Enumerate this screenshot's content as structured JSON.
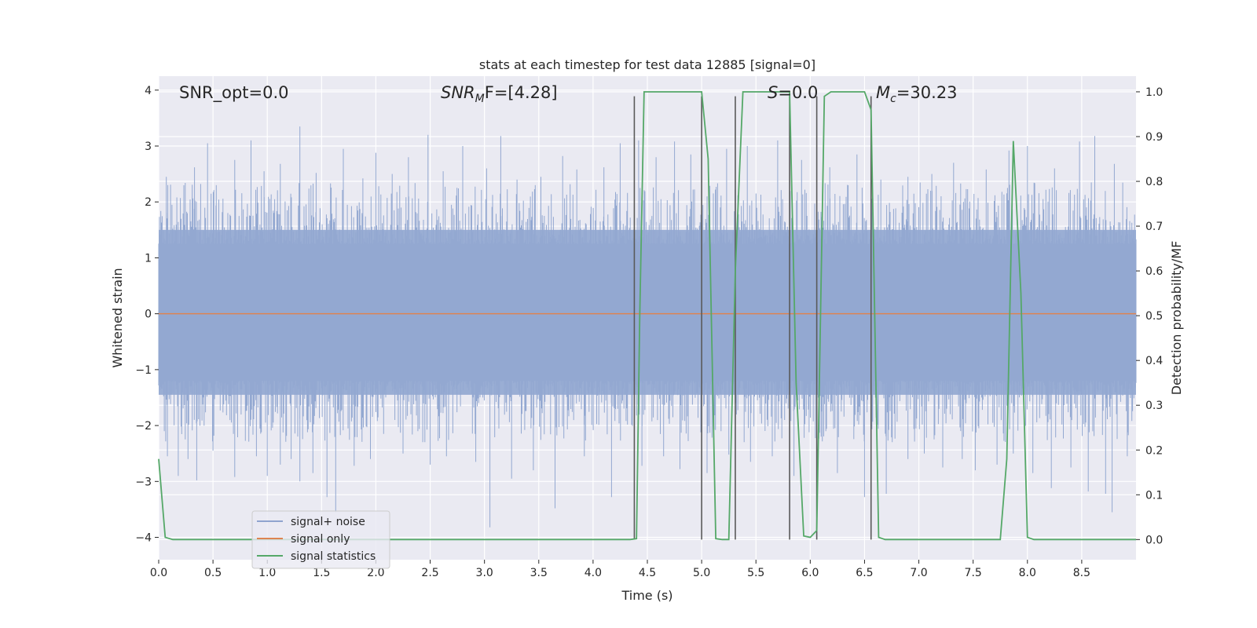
{
  "chart_data": {
    "type": "line",
    "title": "stats at each timestep for test data 12885 [signal=0]",
    "xlabel": "Time (s)",
    "ylabel_left": "Whitened strain",
    "ylabel_right": "Detection probability/MF",
    "xlim": [
      0.0,
      9.0
    ],
    "ylim_left": [
      -4.4,
      4.25
    ],
    "ylim_right": [
      -0.045,
      1.035
    ],
    "x_ticks": [
      0.0,
      0.5,
      1.0,
      1.5,
      2.0,
      2.5,
      3.0,
      3.5,
      4.0,
      4.5,
      5.0,
      5.5,
      6.0,
      6.5,
      7.0,
      7.5,
      8.0,
      8.5
    ],
    "x_tick_labels": [
      "0.0",
      "0.5",
      "1.0",
      "1.5",
      "2.0",
      "2.5",
      "3.0",
      "3.5",
      "4.0",
      "4.5",
      "5.0",
      "5.5",
      "6.0",
      "6.5",
      "7.0",
      "7.5",
      "8.0",
      "8.5"
    ],
    "y_left_ticks": [
      -4,
      -3,
      -2,
      -1,
      0,
      1,
      2,
      3,
      4
    ],
    "y_left_tick_labels": [
      "−4",
      "−3",
      "−2",
      "−1",
      "0",
      "1",
      "2",
      "3",
      "4"
    ],
    "y_right_ticks": [
      0.0,
      0.1,
      0.2,
      0.3,
      0.4,
      0.5,
      0.6,
      0.7,
      0.8,
      0.9,
      1.0
    ],
    "y_right_tick_labels": [
      "0.0",
      "0.1",
      "0.2",
      "0.3",
      "0.4",
      "0.5",
      "0.6",
      "0.7",
      "0.8",
      "0.9",
      "1.0"
    ],
    "right_gridlines": [
      0.0,
      0.1,
      0.2,
      0.3,
      0.4,
      0.5,
      0.6,
      0.7,
      0.8,
      0.9,
      1.0
    ],
    "annotations": {
      "snr_opt": "SNR_opt=0.0",
      "snr_mf_sym": "SNR",
      "snr_mf_sub": "M",
      "snr_mf_rest": "F=[4.28]",
      "s_sym": "S",
      "s_rest": "=0.0",
      "mc_sym": "M",
      "mc_sub": "c",
      "mc_rest": "=30.23"
    },
    "legend": {
      "position": "lower-left",
      "entries": [
        {
          "label": "signal+ noise",
          "color": "#8fa4ce"
        },
        {
          "label": "signal only",
          "color": "#dd8452"
        },
        {
          "label": "signal statistics",
          "color": "#55a868"
        }
      ]
    },
    "series": [
      {
        "name": "signal+ noise",
        "axis": "left",
        "style": "dense noise band",
        "band_core": [
          -1.55,
          1.6
        ],
        "band_extremes": [
          -3.85,
          3.35
        ],
        "spikes_up": [
          [
            0.07,
            2.45
          ],
          [
            0.33,
            2.62
          ],
          [
            0.45,
            3.05
          ],
          [
            0.53,
            2.3
          ],
          [
            0.7,
            2.75
          ],
          [
            0.85,
            3.1
          ],
          [
            0.97,
            2.55
          ],
          [
            1.12,
            2.68
          ],
          [
            1.3,
            3.35
          ],
          [
            1.45,
            2.52
          ],
          [
            1.7,
            2.95
          ],
          [
            1.88,
            2.42
          ],
          [
            2.0,
            2.88
          ],
          [
            2.15,
            2.5
          ],
          [
            2.3,
            2.8
          ],
          [
            2.48,
            3.2
          ],
          [
            2.62,
            2.55
          ],
          [
            2.8,
            3.0
          ],
          [
            3.02,
            2.6
          ],
          [
            3.15,
            3.18
          ],
          [
            3.3,
            2.4
          ],
          [
            3.52,
            2.45
          ],
          [
            3.72,
            2.82
          ],
          [
            3.85,
            2.58
          ],
          [
            4.1,
            2.62
          ],
          [
            4.25,
            3.05
          ],
          [
            4.42,
            3.1
          ],
          [
            4.58,
            2.8
          ],
          [
            4.75,
            3.08
          ],
          [
            4.9,
            2.85
          ],
          [
            5.05,
            2.1
          ],
          [
            5.23,
            2.95
          ],
          [
            5.42,
            3.0
          ],
          [
            5.7,
            3.1
          ],
          [
            5.92,
            2.75
          ],
          [
            6.18,
            2.62
          ],
          [
            6.43,
            2.85
          ],
          [
            6.65,
            2.4
          ],
          [
            6.9,
            2.45
          ],
          [
            7.12,
            2.5
          ],
          [
            7.32,
            2.7
          ],
          [
            7.62,
            2.58
          ],
          [
            7.83,
            2.92
          ],
          [
            8.0,
            3.0
          ],
          [
            8.25,
            2.6
          ],
          [
            8.48,
            3.08
          ],
          [
            8.62,
            3.18
          ],
          [
            8.8,
            2.68
          ]
        ],
        "spikes_down": [
          [
            0.08,
            -2.55
          ],
          [
            0.18,
            -2.9
          ],
          [
            0.27,
            -2.6
          ],
          [
            0.35,
            -2.98
          ],
          [
            0.5,
            -2.45
          ],
          [
            0.7,
            -2.92
          ],
          [
            0.9,
            -2.55
          ],
          [
            1.0,
            -2.9
          ],
          [
            1.12,
            -2.7
          ],
          [
            1.22,
            -2.6
          ],
          [
            1.3,
            -3.0
          ],
          [
            1.42,
            -2.85
          ],
          [
            1.55,
            -3.28
          ],
          [
            1.63,
            -3.55
          ],
          [
            1.8,
            -2.72
          ],
          [
            1.95,
            -2.6
          ],
          [
            2.25,
            -2.5
          ],
          [
            2.5,
            -2.7
          ],
          [
            2.65,
            -2.55
          ],
          [
            2.92,
            -2.65
          ],
          [
            3.05,
            -3.82
          ],
          [
            3.25,
            -2.95
          ],
          [
            3.45,
            -2.8
          ],
          [
            3.65,
            -3.48
          ],
          [
            3.92,
            -2.55
          ],
          [
            4.17,
            -3.28
          ],
          [
            4.45,
            -2.72
          ],
          [
            4.65,
            -2.55
          ],
          [
            4.8,
            -2.78
          ],
          [
            5.05,
            -2.85
          ],
          [
            5.25,
            -2.52
          ],
          [
            5.45,
            -2.65
          ],
          [
            5.65,
            -2.55
          ],
          [
            5.85,
            -2.9
          ],
          [
            6.1,
            -2.2
          ],
          [
            6.25,
            -2.85
          ],
          [
            6.5,
            -3.28
          ],
          [
            6.7,
            -3.22
          ],
          [
            6.9,
            -2.6
          ],
          [
            7.05,
            -2.5
          ],
          [
            7.22,
            -2.75
          ],
          [
            7.4,
            -2.6
          ],
          [
            7.52,
            -2.8
          ],
          [
            7.72,
            -2.7
          ],
          [
            7.87,
            -2.5
          ],
          [
            8.05,
            -2.85
          ],
          [
            8.22,
            -3.12
          ],
          [
            8.4,
            -2.75
          ],
          [
            8.56,
            -3.18
          ],
          [
            8.72,
            -3.22
          ],
          [
            8.78,
            -3.55
          ],
          [
            8.92,
            -2.55
          ]
        ]
      },
      {
        "name": "signal only",
        "axis": "left",
        "x": [
          0.0,
          9.0
        ],
        "y": [
          0.0,
          0.0
        ]
      },
      {
        "name": "signal statistics",
        "axis": "right",
        "x": [
          0.0,
          0.06,
          0.13,
          4.34,
          4.4,
          4.43,
          4.47,
          5.0,
          5.06,
          5.13,
          5.19,
          5.25,
          5.31,
          5.38,
          5.81,
          5.87,
          5.94,
          6.0,
          6.06,
          6.13,
          6.19,
          6.5,
          6.56,
          6.63,
          6.69,
          7.75,
          7.81,
          7.87,
          7.94,
          8.0,
          8.06,
          9.0
        ],
        "y": [
          0.18,
          0.005,
          0.0,
          0.0,
          0.002,
          0.5,
          1.0,
          1.0,
          0.85,
          0.002,
          0.0,
          0.0,
          0.6,
          1.0,
          1.0,
          0.35,
          0.008,
          0.005,
          0.02,
          0.99,
          1.0,
          1.0,
          0.96,
          0.005,
          0.0,
          0.0,
          0.18,
          0.89,
          0.55,
          0.005,
          0.0,
          0.0
        ]
      }
    ],
    "vertical_lines": {
      "color": "#5a5a5a",
      "ymin": 0.0,
      "ymax": 0.99,
      "x": [
        4.38,
        5.0,
        5.31,
        5.81,
        6.06,
        6.56
      ]
    }
  }
}
